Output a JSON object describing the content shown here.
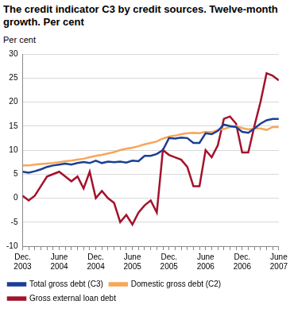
{
  "chart_data": {
    "type": "line",
    "title": "The credit indicator C3 by credit sources. Twelve-month growth. Per cent",
    "y_label": "Per cent",
    "categories": [
      "Dec. 2003",
      null,
      null,
      null,
      null,
      null,
      "June 2004",
      null,
      null,
      null,
      null,
      null,
      "Dec. 2004",
      null,
      null,
      null,
      null,
      null,
      "June 2005",
      null,
      null,
      null,
      null,
      null,
      "Dec. 2005",
      null,
      null,
      null,
      null,
      null,
      "June 2006",
      null,
      null,
      null,
      null,
      null,
      "Dec. 2006",
      null,
      null,
      null,
      null,
      null,
      "June 2007"
    ],
    "series": [
      {
        "name": "Total gross debt (C3)",
        "color": "#1a3f95",
        "values": [
          5.5,
          5.3,
          5.6,
          6,
          6.5,
          6.8,
          7.0,
          7.2,
          7.0,
          7.3,
          7.5,
          7.3,
          7.8,
          7.3,
          7.6,
          7.5,
          7.6,
          7.4,
          7.8,
          7.7,
          8.8,
          8.8,
          9.2,
          10,
          12.5,
          12.4,
          12.6,
          12.5,
          11.5,
          11.5,
          13.5,
          13.3,
          14,
          15.3,
          15,
          14.8,
          13.8,
          13.6,
          14.5,
          15.5,
          16.2,
          16.5,
          16.5
        ]
      },
      {
        "name": "Domestic gross debt (C2)",
        "color": "#f7a65a",
        "values": [
          6.8,
          6.8,
          7.0,
          7.1,
          7.2,
          7.3,
          7.5,
          7.7,
          7.8,
          8.0,
          8.2,
          8.5,
          8.8,
          9.0,
          9.3,
          9.6,
          10.0,
          10.3,
          10.5,
          10.8,
          11.2,
          11.5,
          11.8,
          12.4,
          12.8,
          13.0,
          13.3,
          13.5,
          13.6,
          13.5,
          13.8,
          13.7,
          14.2,
          14.4,
          14.8,
          15.0,
          14.6,
          14.3,
          14.5,
          14.5,
          14.2,
          14.8,
          14.8
        ]
      },
      {
        "name": "Gross external loan debt",
        "color": "#a3122c",
        "values": [
          0.5,
          -0.5,
          0.5,
          2.5,
          4.5,
          5,
          5.5,
          4.5,
          3.5,
          4.5,
          2,
          5.5,
          0,
          1.5,
          0,
          -1,
          -5,
          -3.5,
          -5.5,
          -3,
          -1.5,
          -0.5,
          -3,
          10,
          9,
          8.5,
          8,
          6.5,
          2.5,
          2.5,
          10,
          8.5,
          11,
          16.5,
          17,
          15.5,
          9.5,
          9.5,
          15,
          20,
          26,
          25.5,
          24.5
        ]
      }
    ],
    "ylim": [
      -10,
      30
    ],
    "yticks": [
      -10,
      -5,
      0,
      5,
      10,
      15,
      20,
      25,
      30
    ],
    "grid": true,
    "legend": "bottom"
  }
}
